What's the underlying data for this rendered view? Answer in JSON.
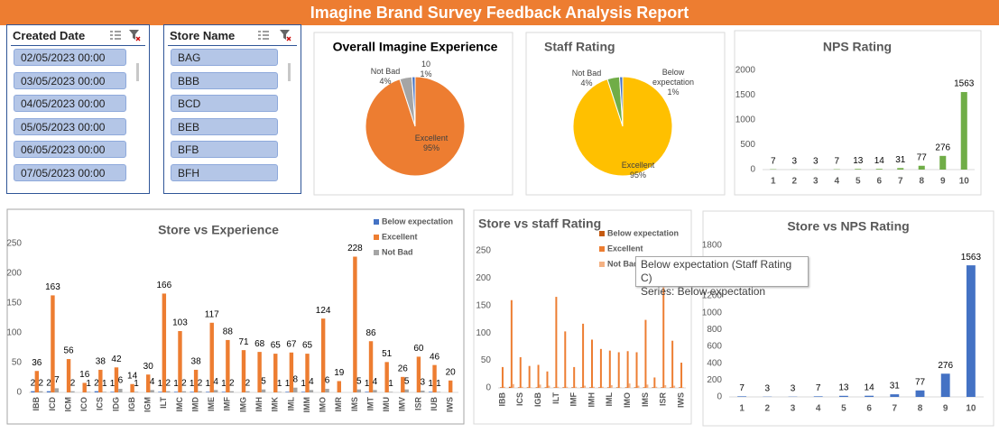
{
  "header": {
    "title": "Imagine Brand Survey Feedback Analysis Report"
  },
  "slicers": [
    {
      "title": "Created Date",
      "items": [
        "02/05/2023 00:00",
        "03/05/2023 00:00",
        "04/05/2023 00:00",
        "05/05/2023 00:00",
        "06/05/2023 00:00",
        "07/05/2023 00:00"
      ]
    },
    {
      "title": "Store Name",
      "items": [
        "BAG",
        "BBB",
        "BCD",
        "BEB",
        "BFB",
        "BFH"
      ]
    }
  ],
  "chart_data": [
    {
      "type": "pie",
      "title": "Overall Imagine Experience",
      "categories": [
        "Excellent",
        "Not Bad",
        "10"
      ],
      "values": [
        95,
        4,
        1
      ],
      "value_labels": [
        "95%",
        "4%",
        "1%"
      ],
      "colors": [
        "#ED7D31",
        "#A5A5A5",
        "#4472C4"
      ]
    },
    {
      "type": "pie",
      "title": "Staff Rating",
      "categories": [
        "Excellent",
        "Not Bad",
        "Below expectation"
      ],
      "values": [
        95,
        4,
        1
      ],
      "value_labels": [
        "95%",
        "4%",
        "1%"
      ],
      "colors": [
        "#FFC000",
        "#70AD47",
        "#4472C4"
      ]
    },
    {
      "type": "bar",
      "title": "NPS Rating",
      "categories": [
        "1",
        "2",
        "3",
        "4",
        "5",
        "6",
        "7",
        "8",
        "9",
        "10"
      ],
      "values": [
        7,
        3,
        3,
        7,
        13,
        14,
        31,
        77,
        276,
        1563
      ],
      "color": "#70AD47",
      "ylim": [
        0,
        2000
      ],
      "yticks": [
        0,
        500,
        1000,
        1500,
        2000
      ],
      "grid": false,
      "data_labels": true
    },
    {
      "type": "bar",
      "title": "Store vs Experience",
      "categories": [
        "IBB",
        "ICD",
        "ICM",
        "ICO",
        "ICS",
        "IDG",
        "IGB",
        "IGM",
        "ILT",
        "IMC",
        "IMD",
        "IME",
        "IMF",
        "IMG",
        "IMH",
        "IMK",
        "IML",
        "IMM",
        "IMO",
        "IMR",
        "IMS",
        "IMT",
        "IMU",
        "IMV",
        "ISR",
        "IUB",
        "IWS"
      ],
      "series": [
        {
          "name": "Below expectation",
          "color": "#4472C4",
          "values": [
            2,
            2,
            null,
            null,
            2,
            1,
            null,
            null,
            1,
            1,
            1,
            1,
            1,
            null,
            null,
            null,
            1,
            1,
            null,
            null,
            null,
            1,
            null,
            null,
            null,
            1,
            null
          ]
        },
        {
          "name": "Excellent",
          "color": "#ED7D31",
          "values": [
            36,
            163,
            56,
            16,
            38,
            42,
            14,
            30,
            166,
            103,
            38,
            117,
            88,
            71,
            68,
            65,
            67,
            65,
            124,
            19,
            228,
            86,
            51,
            26,
            60,
            46,
            20
          ]
        },
        {
          "name": "Not Bad",
          "color": "#A5A5A5",
          "values": [
            2,
            7,
            2,
            1,
            1,
            6,
            1,
            4,
            2,
            2,
            2,
            4,
            2,
            2,
            5,
            1,
            8,
            4,
            6,
            null,
            5,
            4,
            1,
            5,
            3,
            1,
            null
          ]
        }
      ],
      "ylim": [
        0,
        250
      ],
      "yticks": [
        0,
        50,
        100,
        150,
        200,
        250
      ],
      "grid": false,
      "data_labels": true,
      "legend": "top-right"
    },
    {
      "type": "bar",
      "title": "Store vs staff Rating",
      "categories": [
        "IBB",
        null,
        "ICS",
        null,
        "IGB",
        null,
        "ILT",
        null,
        "IMF",
        null,
        "IMH",
        null,
        "IML",
        null,
        "IMO",
        null,
        "IMS",
        null,
        "ISR",
        null,
        "IWS"
      ],
      "series": [
        {
          "name": "Below expectation",
          "color": "#C55A11",
          "values": [
            1,
            2,
            1,
            1,
            1,
            1,
            1,
            1,
            1,
            1,
            1,
            1,
            1,
            1,
            1,
            1,
            1,
            1,
            1,
            1,
            1
          ]
        },
        {
          "name": "Excellent",
          "color": "#ED7D31",
          "values": [
            38,
            160,
            56,
            40,
            42,
            30,
            166,
            103,
            38,
            117,
            88,
            71,
            68,
            65,
            67,
            65,
            124,
            19,
            228,
            86,
            46
          ]
        },
        {
          "name": "Not Bad",
          "color": "#F4B183",
          "values": [
            2,
            7,
            2,
            1,
            6,
            4,
            2,
            2,
            2,
            4,
            2,
            2,
            5,
            1,
            8,
            4,
            6,
            2,
            5,
            4,
            1
          ]
        }
      ],
      "ylim": [
        0,
        250
      ],
      "yticks": [
        0,
        50,
        100,
        150,
        200,
        250
      ],
      "grid": false,
      "data_labels": false,
      "legend": "top-right"
    },
    {
      "type": "bar",
      "title": "Store vs NPS Rating",
      "categories": [
        "1",
        "2",
        "3",
        "4",
        "5",
        "6",
        "7",
        "8",
        "9",
        "10"
      ],
      "values": [
        7,
        3,
        3,
        7,
        13,
        14,
        31,
        77,
        276,
        1563
      ],
      "color": "#4472C4",
      "ylim": [
        0,
        1800
      ],
      "yticks": [
        0,
        200,
        400,
        600,
        800,
        1000,
        1200,
        1400,
        1600,
        1800
      ],
      "grid": false,
      "data_labels": true
    }
  ],
  "tooltip": {
    "lines": [
      "Below expectation (Staff Rating C)",
      "Series: Below expectation"
    ]
  }
}
